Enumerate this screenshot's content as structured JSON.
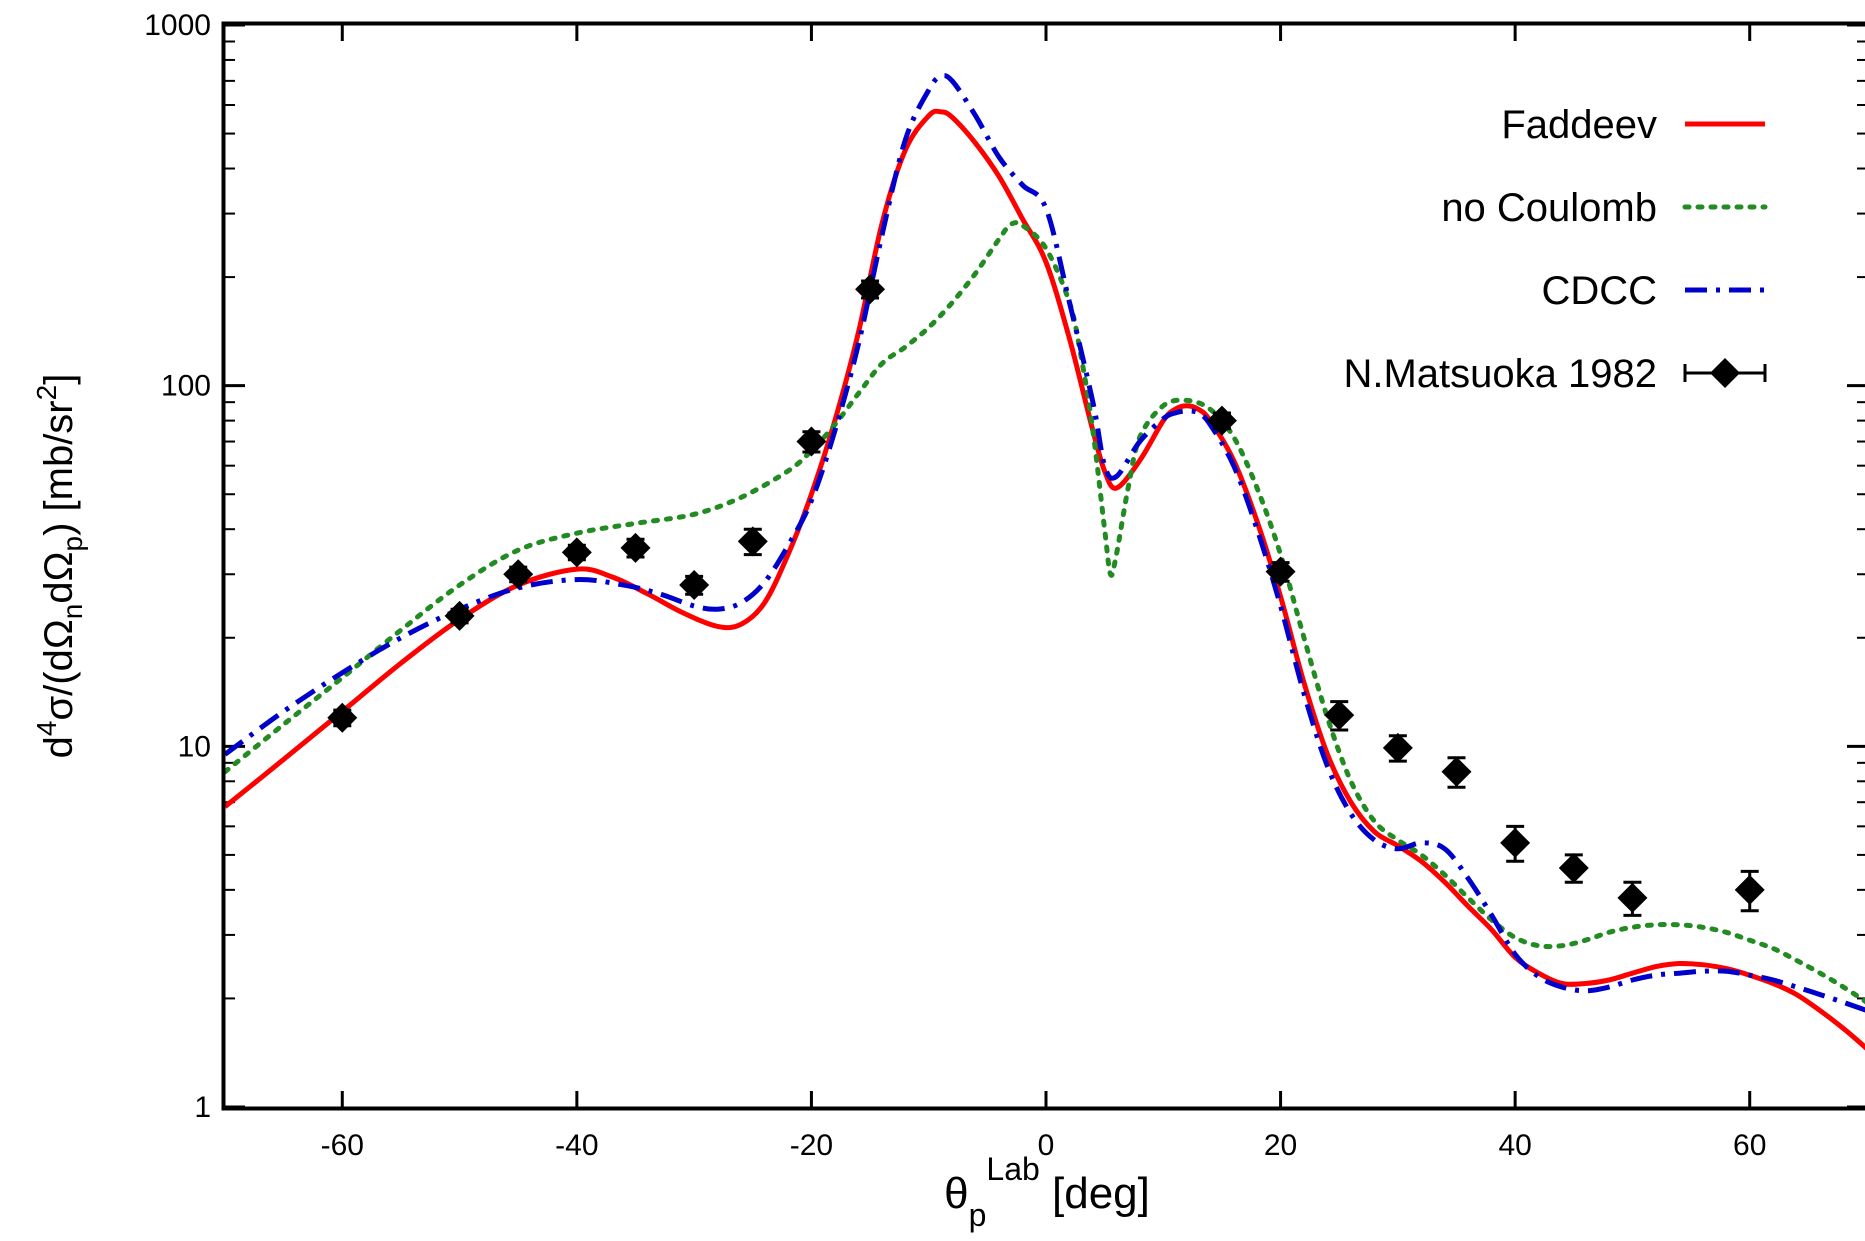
{
  "chart_data": {
    "type": "line",
    "title": "",
    "x_axis": {
      "label_main": "θ",
      "label_sub": "p",
      "label_sup": "Lab",
      "label_unit": " [deg]",
      "range": [
        -70,
        70
      ],
      "ticks": [
        -60,
        -40,
        -20,
        0,
        20,
        40,
        60
      ]
    },
    "y_axis": {
      "label": "d⁴σ/(dΩₙdΩₚ) [mb/sr²]",
      "label_parts": [
        {
          "t": "d"
        },
        {
          "t": "4",
          "s": "sup"
        },
        {
          "t": "σ/(dΩ"
        },
        {
          "t": "n",
          "s": "sub"
        },
        {
          "t": "dΩ"
        },
        {
          "t": "p",
          "s": "sub"
        },
        {
          "t": ") [mb/sr"
        },
        {
          "t": "2",
          "s": "sup"
        },
        {
          "t": "]"
        }
      ],
      "scale": "log",
      "range": [
        1,
        1000
      ],
      "ticks": [
        1,
        10,
        100,
        1000
      ],
      "tick_labels": [
        "1",
        "10",
        "100",
        "1000"
      ]
    },
    "legend_position": "top-right",
    "series": [
      {
        "name": "Faddeev",
        "style": "solid",
        "color": "#ff0000",
        "x": [
          -70,
          -65,
          -60,
          -55,
          -50,
          -45,
          -40,
          -37,
          -34,
          -31,
          -28,
          -26,
          -24,
          -22,
          -20,
          -18,
          -16,
          -14,
          -12,
          -10,
          -9,
          -8,
          -6,
          -4,
          -2,
          0,
          2,
          4,
          5,
          6,
          8,
          10,
          11,
          12,
          13,
          14,
          16,
          18,
          20,
          22,
          24,
          26,
          28,
          30,
          32,
          34,
          36,
          38,
          40,
          42,
          44,
          46,
          48,
          50,
          52,
          54,
          56,
          58,
          60,
          62,
          64,
          66,
          68,
          70
        ],
        "y": [
          6.8,
          9.2,
          12.5,
          17.0,
          22.5,
          28.0,
          31.0,
          29.5,
          26.5,
          23.5,
          21.5,
          21.8,
          25.0,
          34.0,
          50.0,
          80.0,
          140.0,
          280.0,
          450.0,
          560.0,
          575.0,
          555.0,
          470.0,
          380.0,
          290.0,
          220.0,
          135.0,
          75.0,
          58.0,
          52.0,
          62.0,
          80.0,
          86.0,
          88.0,
          86.0,
          80.0,
          62.0,
          42.0,
          26.0,
          15.0,
          9.5,
          7.0,
          5.8,
          5.3,
          4.8,
          4.2,
          3.6,
          3.1,
          2.6,
          2.35,
          2.2,
          2.2,
          2.25,
          2.35,
          2.45,
          2.5,
          2.48,
          2.42,
          2.32,
          2.2,
          2.05,
          1.85,
          1.65,
          1.45
        ]
      },
      {
        "name": "no Coulomb",
        "style": "dotted",
        "color": "#228b22",
        "x": [
          -70,
          -65,
          -60,
          -55,
          -50,
          -45,
          -40,
          -35,
          -30,
          -26,
          -22,
          -20,
          -18,
          -16,
          -14,
          -12,
          -10,
          -8,
          -6,
          -4,
          -3,
          -2,
          0,
          2,
          3,
          4,
          5,
          5.5,
          6,
          7,
          8,
          10,
          12,
          14,
          16,
          18,
          20,
          22,
          24,
          26,
          28,
          30,
          32,
          34,
          36,
          38,
          40,
          42,
          44,
          46,
          48,
          50,
          52,
          54,
          56,
          58,
          60,
          62,
          64,
          66,
          68,
          70
        ],
        "y": [
          8.5,
          11.5,
          15.5,
          21.0,
          28.0,
          35.0,
          39.0,
          41.5,
          44.0,
          49.0,
          58.0,
          66.0,
          78.0,
          95.0,
          115.0,
          128.0,
          145.0,
          170.0,
          205.0,
          255.0,
          280.0,
          278.0,
          240.0,
          170.0,
          120.0,
          75.0,
          40.0,
          30.0,
          34.0,
          52.0,
          72.0,
          88.0,
          91.0,
          86.0,
          72.0,
          52.0,
          34.0,
          20.0,
          12.0,
          8.0,
          6.2,
          5.5,
          5.0,
          4.4,
          3.8,
          3.3,
          2.95,
          2.8,
          2.8,
          2.9,
          3.05,
          3.15,
          3.2,
          3.2,
          3.15,
          3.05,
          2.9,
          2.75,
          2.55,
          2.35,
          2.15,
          1.95
        ]
      },
      {
        "name": "CDCC",
        "style": "dashdot",
        "color": "#0000cd",
        "x": [
          -70,
          -65,
          -60,
          -55,
          -50,
          -45,
          -40,
          -36,
          -33,
          -30,
          -28,
          -26,
          -24,
          -22,
          -20,
          -18,
          -16,
          -14,
          -12,
          -10,
          -9,
          -8,
          -6,
          -4,
          -2,
          0,
          2,
          4,
          5,
          6,
          8,
          10,
          11,
          12,
          13,
          14,
          16,
          18,
          20,
          22,
          24,
          26,
          28,
          30,
          32,
          34,
          36,
          38,
          40,
          42,
          44,
          46,
          48,
          50,
          52,
          54,
          56,
          58,
          60,
          62,
          64,
          66,
          68,
          70
        ],
        "y": [
          9.5,
          12.5,
          16.0,
          20.0,
          24.0,
          27.5,
          29.0,
          28.0,
          26.5,
          24.5,
          24.0,
          25.0,
          28.5,
          36.0,
          48.0,
          75.0,
          130.0,
          260.0,
          480.0,
          660.0,
          720.0,
          700.0,
          560.0,
          430.0,
          360.0,
          310.0,
          170.0,
          90.0,
          60.0,
          56.0,
          70.0,
          81.0,
          84.0,
          85.0,
          84.0,
          78.0,
          60.0,
          40.0,
          24.5,
          14.0,
          8.8,
          6.5,
          5.5,
          5.2,
          5.4,
          5.2,
          4.3,
          3.4,
          2.65,
          2.3,
          2.15,
          2.1,
          2.15,
          2.25,
          2.32,
          2.35,
          2.38,
          2.38,
          2.32,
          2.25,
          2.15,
          2.05,
          1.95,
          1.85
        ]
      },
      {
        "name": "N.Matsuoka 1982",
        "style": "points",
        "color": "#000000",
        "x": [
          -60,
          -50,
          -45,
          -40,
          -35,
          -30,
          -25,
          -20,
          -15,
          15,
          20,
          25,
          30,
          35,
          40,
          45,
          50,
          60
        ],
        "y": [
          12.0,
          23.0,
          30.0,
          34.5,
          35.5,
          28.0,
          37.0,
          70.0,
          185.0,
          80.0,
          30.5,
          12.2,
          9.9,
          8.5,
          5.4,
          4.6,
          3.8,
          4.0
        ],
        "err": [
          0.6,
          1.0,
          1.4,
          1.6,
          2.0,
          1.6,
          3.0,
          4.5,
          10.0,
          4.0,
          1.8,
          1.1,
          0.8,
          0.8,
          0.6,
          0.4,
          0.4,
          0.5
        ]
      }
    ]
  },
  "colors": {
    "axis": "#000000",
    "background": "#ffffff"
  }
}
